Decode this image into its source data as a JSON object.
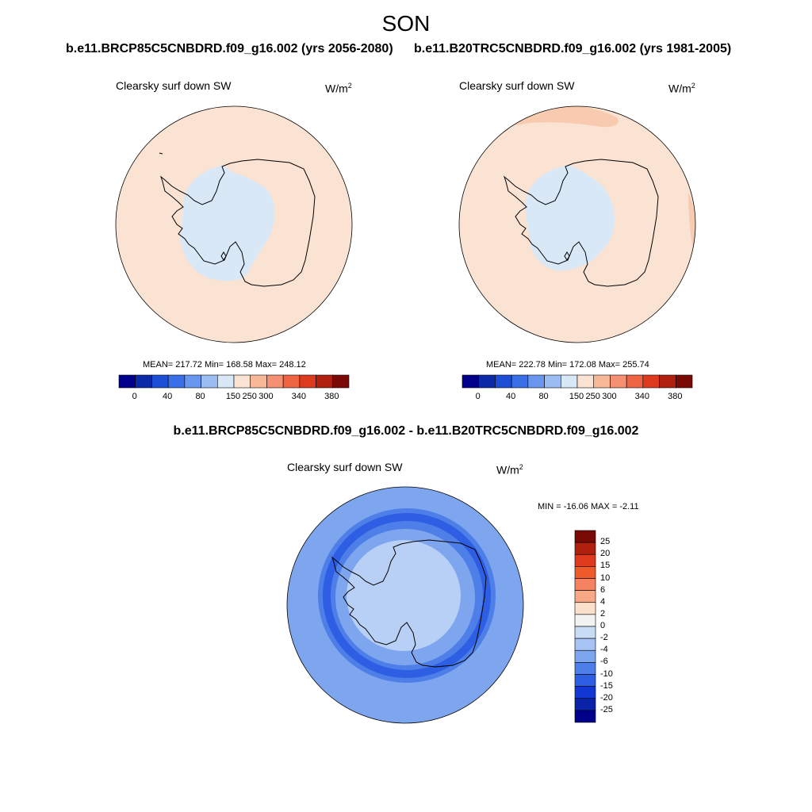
{
  "header": {
    "season": "SON",
    "run_left": "b.e11.BRCP85C5CNBDRD.f09_g16.002 (yrs 2056-2080)",
    "run_right": "b.e11.B20TRC5CNBDRD.f09_g16.002 (yrs 1981-2005)",
    "diff_title": "b.e11.BRCP85C5CNBDRD.f09_g16.002 - b.e11.B20TRC5CNBDRD.f09_g16.002"
  },
  "panels": {
    "left": {
      "variable": "Clearsky surf down SW",
      "unit_base": "W/m",
      "unit_exp": "2",
      "stats": "MEAN= 217.72  Min= 168.58  Max= 248.12",
      "ocean_level_color": "#fbe3d3",
      "ice_level_color": "#d9e8f7"
    },
    "right": {
      "variable": "Clearsky surf down SW",
      "unit_base": "W/m",
      "unit_exp": "2",
      "stats": "MEAN= 222.78  Min= 172.08  Max= 255.74",
      "ocean_level_color": "#fbe3d3",
      "ice_level_color": "#d9e8f7",
      "edge_level_color": "#f8cbb0"
    },
    "diff": {
      "variable": "Clearsky surf down SW",
      "unit_base": "W/m",
      "unit_exp": "2",
      "stats": "MIN = -16.06 MAX =  -2.11"
    }
  },
  "colorbar_abs": {
    "colors": [
      "#00008b",
      "#0a2aa8",
      "#1d4fd6",
      "#3a6fe8",
      "#6a96ef",
      "#9cbdf3",
      "#d9e8f7",
      "#fbe3d3",
      "#f8b898",
      "#f59072",
      "#ee6443",
      "#de3b1e",
      "#b0200f",
      "#7a0a05"
    ],
    "tick_labels": [
      "0",
      "40",
      "80",
      "150",
      "250",
      "300",
      "340",
      "380"
    ]
  },
  "colorbar_diff": {
    "colors_top_to_bottom": [
      "#7a0a05",
      "#b0200f",
      "#de3b1e",
      "#ee5a2a",
      "#f58260",
      "#f8a884",
      "#fbe0cc",
      "#f2f2f2",
      "#c9dcf6",
      "#a7c3f3",
      "#7ea6ee",
      "#4e7fe8",
      "#2d5ee3",
      "#1238d4",
      "#0a22a8",
      "#00008b"
    ],
    "labels_top_to_bottom": [
      "25",
      "20",
      "15",
      "10",
      "6",
      "4",
      "2",
      "0",
      "-2",
      "-4",
      "-6",
      "-10",
      "-15",
      "-20",
      "-25"
    ]
  },
  "diff_field_colors": {
    "inner": "#b9d0f6",
    "mid": "#7ea6ee",
    "ring": "#4e7fe8",
    "core": "#2d5ee3"
  }
}
